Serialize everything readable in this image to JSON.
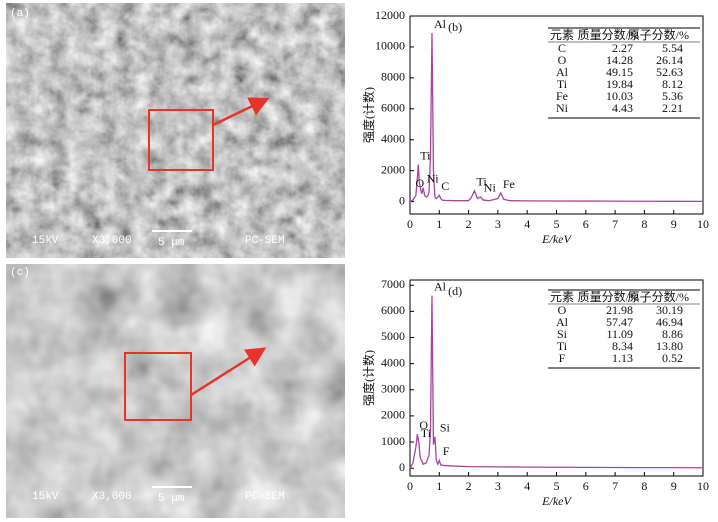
{
  "images": [
    {
      "label": "(a)",
      "voltage": "15kV",
      "magnification": "X3,000",
      "scale": "5 μm",
      "instrument": "PC-SEM"
    },
    {
      "label": "(c)",
      "voltage": "15kV",
      "magnification": "X3,000",
      "scale": "5 μm",
      "instrument": "PC-SEM"
    }
  ],
  "chart_data": [
    {
      "type": "line",
      "label": "(b)",
      "x_label": "E/keV",
      "y_label": "强度(计数)",
      "color": "#a8459a",
      "xlim": [
        0,
        10
      ],
      "xticks": [
        0,
        1,
        2,
        3,
        4,
        5,
        6,
        7,
        8,
        9,
        10
      ],
      "ylim": [
        -800,
        12000
      ],
      "yticks": [
        0,
        2000,
        4000,
        6000,
        8000,
        10000,
        12000
      ],
      "x": [
        0,
        0.1,
        0.2,
        0.25,
        0.28,
        0.32,
        0.4,
        0.45,
        0.5,
        0.55,
        0.6,
        0.65,
        0.7,
        0.75,
        0.8,
        0.85,
        0.9,
        1.0,
        1.05,
        1.1,
        1.2,
        1.5,
        2.0,
        2.1,
        2.2,
        2.3,
        2.4,
        2.5,
        2.7,
        3.0,
        3.1,
        3.2,
        3.4,
        4,
        5,
        6,
        7,
        8,
        9,
        10
      ],
      "values": [
        0,
        100,
        400,
        1500,
        2400,
        1200,
        500,
        900,
        400,
        300,
        350,
        600,
        3000,
        10900,
        2000,
        300,
        200,
        400,
        200,
        100,
        80,
        60,
        60,
        300,
        700,
        200,
        300,
        100,
        60,
        200,
        550,
        150,
        60,
        50,
        40,
        35,
        30,
        25,
        20,
        15
      ],
      "annotations": [
        {
          "text": "Al",
          "x": 0.75,
          "y": 10900
        },
        {
          "text": "Ti",
          "x": 0.28,
          "y": 2400
        },
        {
          "text": "O",
          "x": 0.12,
          "y": 600
        },
        {
          "text": "Ni",
          "x": 0.5,
          "y": 900
        },
        {
          "text": "C",
          "x": 1.0,
          "y": 400
        },
        {
          "text": "Ti",
          "x": 2.2,
          "y": 700
        },
        {
          "text": "Ni",
          "x": 2.45,
          "y": 300
        },
        {
          "text": "Fe",
          "x": 3.1,
          "y": 550
        }
      ],
      "table": {
        "header": [
          "元素",
          "质量分数/%",
          "原子分数/%"
        ],
        "rows": [
          [
            "C",
            "2.27",
            "5.54"
          ],
          [
            "O",
            "14.28",
            "26.14"
          ],
          [
            "Al",
            "49.15",
            "52.63"
          ],
          [
            "Ti",
            "19.84",
            "8.12"
          ],
          [
            "Fe",
            "10.03",
            "5.36"
          ],
          [
            "Ni",
            "4.43",
            "2.21"
          ]
        ]
      }
    },
    {
      "type": "line",
      "label": "(d)",
      "x_label": "E/keV",
      "y_label": "强度(计数)",
      "color": "#a8459a",
      "xlim": [
        0,
        10
      ],
      "xticks": [
        0,
        1,
        2,
        3,
        4,
        5,
        6,
        7,
        8,
        9,
        10
      ],
      "ylim": [
        -300,
        7200
      ],
      "yticks": [
        0,
        1000,
        2000,
        3000,
        4000,
        5000,
        6000,
        7000
      ],
      "x": [
        0,
        0.1,
        0.2,
        0.25,
        0.3,
        0.35,
        0.45,
        0.55,
        0.65,
        0.7,
        0.75,
        0.8,
        0.85,
        0.9,
        0.95,
        1.0,
        1.05,
        1.2,
        1.5,
        2,
        3,
        4,
        5,
        6,
        7,
        8,
        9,
        10
      ],
      "values": [
        0,
        200,
        800,
        1300,
        1000,
        400,
        150,
        200,
        500,
        1500,
        6600,
        900,
        1200,
        300,
        150,
        300,
        120,
        100,
        80,
        60,
        50,
        40,
        35,
        30,
        25,
        20,
        20,
        15
      ],
      "annotations": [
        {
          "text": "Al",
          "x": 0.75,
          "y": 6600
        },
        {
          "text": "O",
          "x": 0.25,
          "y": 1300
        },
        {
          "text": "Ti",
          "x": 0.3,
          "y": 1000
        },
        {
          "text": "Si",
          "x": 0.95,
          "y": 1200
        },
        {
          "text": "F",
          "x": 1.05,
          "y": 300
        }
      ],
      "table": {
        "header": [
          "元素",
          "质量分数/%",
          "原子分数/%"
        ],
        "rows": [
          [
            "O",
            "21.98",
            "30.19"
          ],
          [
            "Al",
            "57.47",
            "46.94"
          ],
          [
            "Si",
            "11.09",
            "8.86"
          ],
          [
            "Ti",
            "8.34",
            "13.80"
          ],
          [
            "F",
            "1.13",
            "0.52"
          ]
        ]
      }
    }
  ]
}
